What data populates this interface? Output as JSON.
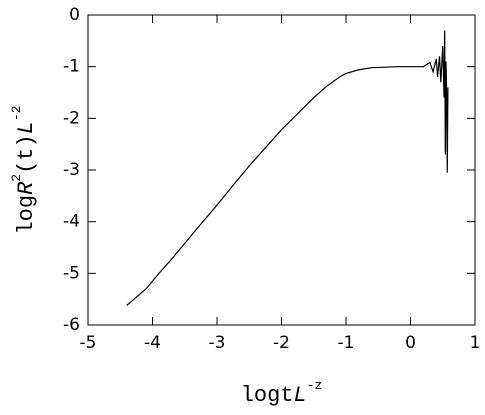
{
  "chart_data": {
    "type": "line",
    "xlabel": [
      {
        "text": "logt"
      },
      {
        "text": "L",
        "italic": true
      },
      {
        "text": "-z",
        "sup": true
      }
    ],
    "ylabel": [
      {
        "text": "log"
      },
      {
        "text": "R",
        "italic": true
      },
      {
        "text": "2",
        "sup": true
      },
      {
        "text": "(t)"
      },
      {
        "text": "L",
        "italic": true
      },
      {
        "text": "-2",
        "sup": true
      }
    ],
    "xlim": [
      -5,
      1
    ],
    "xticks": [
      -5,
      -4,
      -3,
      -2,
      -1,
      0,
      1
    ],
    "ylim": [
      -6,
      0
    ],
    "yticks": [
      -6,
      -5,
      -4,
      -3,
      -2,
      -1,
      0
    ],
    "series": [
      {
        "color": "#000000",
        "x": [
          -4.4,
          -4.1,
          -3.9,
          -3.7,
          -3.5,
          -3.3,
          -3,
          -2.7,
          -2.5,
          -2.2,
          -2,
          -1.7,
          -1.5,
          -1.3,
          -1.1,
          -1,
          -0.8,
          -0.6,
          -0.4,
          -0.2,
          0,
          0.2,
          0.3,
          0.35,
          0.4,
          0.42,
          0.45,
          0.47,
          0.5,
          0.52,
          0.53,
          0.54,
          0.55,
          0.56,
          0.57,
          0.58
        ],
        "values": [
          -5.62,
          -5.3,
          -5.0,
          -4.72,
          -4.42,
          -4.12,
          -3.68,
          -3.22,
          -2.92,
          -2.5,
          -2.22,
          -1.85,
          -1.6,
          -1.38,
          -1.2,
          -1.13,
          -1.06,
          -1.02,
          -1.01,
          -1.0,
          -1.0,
          -1.0,
          -0.92,
          -1.1,
          -0.85,
          -1.2,
          -0.8,
          -1.3,
          -0.6,
          -1.6,
          -0.3,
          -2.7,
          -0.9,
          -1.5,
          -3.05,
          -1.4
        ]
      }
    ]
  }
}
